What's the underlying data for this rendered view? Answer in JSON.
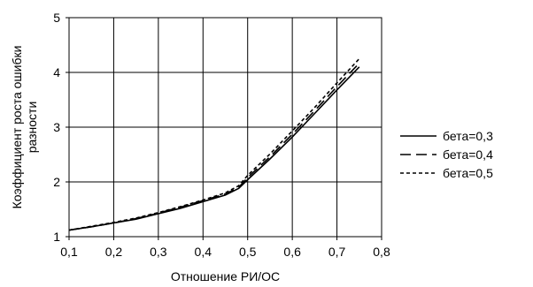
{
  "chart_data": {
    "type": "line",
    "xlabel": "Отношение РИ/ОС",
    "ylabel_lines": [
      "Коэффициент роста ошибки",
      "разности"
    ],
    "xlim": [
      0.1,
      0.8
    ],
    "ylim": [
      1,
      5
    ],
    "x_ticks": [
      "0,1",
      "0,2",
      "0,3",
      "0,4",
      "0,5",
      "0,6",
      "0,7",
      "0,8"
    ],
    "y_ticks": [
      "1",
      "2",
      "3",
      "4",
      "5"
    ],
    "grid": true,
    "legend_position": "right",
    "series": [
      {
        "name": "бета=0,3",
        "style": "solid",
        "color": "#000000",
        "points": [
          [
            0.1,
            1.12
          ],
          [
            0.15,
            1.18
          ],
          [
            0.2,
            1.25
          ],
          [
            0.25,
            1.32
          ],
          [
            0.3,
            1.42
          ],
          [
            0.35,
            1.52
          ],
          [
            0.4,
            1.64
          ],
          [
            0.45,
            1.76
          ],
          [
            0.48,
            1.88
          ],
          [
            0.5,
            2.04
          ],
          [
            0.55,
            2.42
          ],
          [
            0.6,
            2.82
          ],
          [
            0.65,
            3.25
          ],
          [
            0.7,
            3.68
          ],
          [
            0.75,
            4.1
          ]
        ]
      },
      {
        "name": "бета=0,4",
        "style": "longdash",
        "color": "#000000",
        "points": [
          [
            0.1,
            1.12
          ],
          [
            0.15,
            1.18
          ],
          [
            0.2,
            1.25
          ],
          [
            0.25,
            1.33
          ],
          [
            0.3,
            1.43
          ],
          [
            0.35,
            1.54
          ],
          [
            0.4,
            1.66
          ],
          [
            0.45,
            1.78
          ],
          [
            0.48,
            1.9
          ],
          [
            0.5,
            2.08
          ],
          [
            0.55,
            2.46
          ],
          [
            0.6,
            2.87
          ],
          [
            0.65,
            3.3
          ],
          [
            0.7,
            3.74
          ],
          [
            0.75,
            4.17
          ]
        ]
      },
      {
        "name": "бета=0,5",
        "style": "shortdash",
        "color": "#000000",
        "points": [
          [
            0.1,
            1.12
          ],
          [
            0.15,
            1.19
          ],
          [
            0.2,
            1.26
          ],
          [
            0.25,
            1.34
          ],
          [
            0.3,
            1.44
          ],
          [
            0.35,
            1.55
          ],
          [
            0.4,
            1.67
          ],
          [
            0.45,
            1.8
          ],
          [
            0.48,
            1.93
          ],
          [
            0.5,
            2.12
          ],
          [
            0.55,
            2.51
          ],
          [
            0.6,
            2.93
          ],
          [
            0.65,
            3.36
          ],
          [
            0.7,
            3.81
          ],
          [
            0.75,
            4.25
          ]
        ]
      }
    ]
  }
}
